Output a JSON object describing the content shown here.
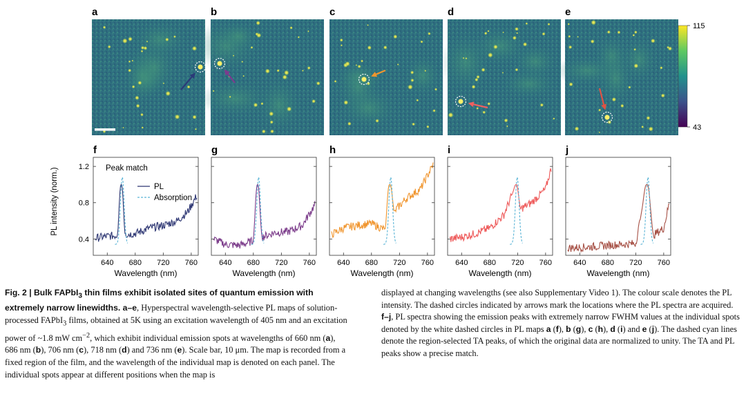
{
  "figure": {
    "map_panels": [
      {
        "letter": "a",
        "arrow_color": "#2b3a78"
      },
      {
        "letter": "b",
        "arrow_color": "#7d3a8e"
      },
      {
        "letter": "c",
        "arrow_color": "#f0962e"
      },
      {
        "letter": "d",
        "arrow_color": "#ef5f5f"
      },
      {
        "letter": "e",
        "arrow_color": "#e05244"
      }
    ],
    "colorbar": {
      "max": "115",
      "min": "43"
    },
    "scale_bar_label": "Scale bar, 10 μm"
  },
  "chart_data": {
    "type": "line",
    "ylabel": "PL intensity (norm.)",
    "xlabel": "Wavelength (nm)",
    "xlim": [
      620,
      770
    ],
    "ylim": [
      0.22,
      1.3
    ],
    "xticks": [
      "640",
      "680",
      "720",
      "760"
    ],
    "yticks": [
      "0.4",
      "0.8",
      "1.2"
    ],
    "inset_title": "Peak match",
    "legend": [
      "PL",
      "Absorption"
    ],
    "absorption_color": "#5ab4d6",
    "panels": [
      {
        "letter": "f",
        "color": "#2c3572",
        "peak_nm": 660,
        "fwhm": 4,
        "x": [
          623,
          640,
          655,
          660,
          665,
          680,
          700,
          720,
          740,
          755,
          768
        ],
        "values": [
          0.41,
          0.43,
          0.44,
          1.0,
          0.45,
          0.46,
          0.52,
          0.55,
          0.6,
          0.7,
          0.88
        ]
      },
      {
        "letter": "g",
        "color": "#7b3b8a",
        "peak_nm": 686,
        "fwhm": 4,
        "x": [
          623,
          640,
          660,
          680,
          686,
          692,
          710,
          730,
          750,
          768
        ],
        "values": [
          0.4,
          0.34,
          0.33,
          0.38,
          1.0,
          0.42,
          0.47,
          0.48,
          0.55,
          0.78
        ]
      },
      {
        "letter": "h",
        "color": "#f0942c",
        "peak_nm": 706,
        "fwhm": 5,
        "x": [
          623,
          640,
          660,
          680,
          700,
          706,
          712,
          730,
          750,
          768
        ],
        "values": [
          0.45,
          0.52,
          0.55,
          0.57,
          0.5,
          1.0,
          0.7,
          0.85,
          0.95,
          1.22
        ]
      },
      {
        "letter": "i",
        "color": "#ee5a5a",
        "peak_nm": 718,
        "fwhm": 4,
        "x": [
          623,
          640,
          660,
          680,
          700,
          718,
          724,
          740,
          760,
          768
        ],
        "values": [
          0.4,
          0.42,
          0.46,
          0.52,
          0.66,
          1.0,
          0.73,
          0.8,
          0.95,
          1.18
        ]
      },
      {
        "letter": "j",
        "color": "#a65045",
        "peak_nm": 736,
        "fwhm": 6,
        "x": [
          623,
          650,
          680,
          700,
          720,
          736,
          745,
          760,
          768
        ],
        "values": [
          0.3,
          0.31,
          0.33,
          0.34,
          0.35,
          1.0,
          0.44,
          0.52,
          0.8
        ]
      }
    ]
  },
  "caption": {
    "p1": {
      "title": "Fig. 2 | Bulk FAPbI",
      "title_sub": "3",
      "title_rest": " thin films exhibit isolated sites of quantum emission with extremely narrow linewidths.",
      "ae": " a–e",
      "t1": ", Hyperspectral wavelength-selective PL maps of solution-processed FAPbI",
      "sub1": "3",
      "t2": " films, obtained at 5K using an excitation wavelength of 405 nm and an excitation power of ~1.8 mW cm",
      "sup": "−2",
      "t3": ", which exhibit individual emission spots at wavelengths of 660 nm (",
      "a": "a",
      "t4": "), 686 nm (",
      "b": "b",
      "t5": "), 706 nm (",
      "c": "c",
      "t6": "), 718 nm (",
      "d": "d",
      "t7": ") and 736 nm (",
      "e": "e",
      "t8": "). Scale bar, 10 μm. The map is recorded from a fixed region of the film, and the wavelength of the individual map is denoted on each panel. The individual spots appear at different positions when the map is"
    },
    "p2": {
      "t1": "displayed at changing wavelengths (see also Supplementary Video 1). The colour scale denotes the PL intensity. The dashed circles indicated by arrows mark the locations where the PL spectra are acquired. ",
      "fj": "f–j",
      "t2": ", PL spectra showing the emission peaks with extremely narrow FWHM values at the individual spots denoted by the white dashed circles in PL maps ",
      "a": "a",
      "t3": " (",
      "f": "f",
      "t4": "), ",
      "b": "b",
      "t5": " (",
      "g": "g",
      "t6": "), ",
      "c": "c",
      "t7": " (",
      "h": "h",
      "t8": "), ",
      "d": "d",
      "t9": " (",
      "i": "i",
      "t10": ") and ",
      "e": "e",
      "t11": " (",
      "j": "j",
      "t12": "). The dashed cyan lines denote the region-selected TA peaks, of which the original data are normalized to unity. The TA and PL peaks show a precise match."
    }
  }
}
